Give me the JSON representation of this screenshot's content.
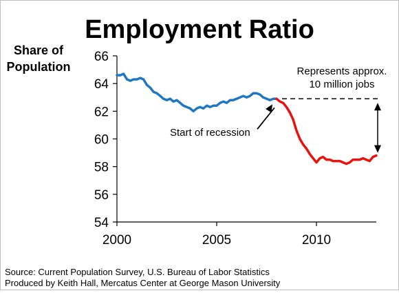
{
  "chart_data": {
    "type": "line",
    "title": "Employment Ratio",
    "ylabel_line1": "Share of",
    "ylabel_line2": "Population",
    "xlabel": "",
    "xlim": [
      2000,
      2013
    ],
    "ylim": [
      54,
      66
    ],
    "x_ticks": [
      2000,
      2005,
      2010
    ],
    "y_ticks": [
      54,
      56,
      58,
      60,
      62,
      64,
      66
    ],
    "grid": false,
    "series": [
      {
        "color": "#1f77c4",
        "points": [
          [
            2000.0,
            64.6
          ],
          [
            2000.17,
            64.6
          ],
          [
            2000.33,
            64.7
          ],
          [
            2000.5,
            64.3
          ],
          [
            2000.67,
            64.2
          ],
          [
            2000.83,
            64.3
          ],
          [
            2001.0,
            64.3
          ],
          [
            2001.17,
            64.4
          ],
          [
            2001.33,
            64.3
          ],
          [
            2001.5,
            63.9
          ],
          [
            2001.67,
            63.7
          ],
          [
            2001.83,
            63.4
          ],
          [
            2002.0,
            63.3
          ],
          [
            2002.17,
            63.1
          ],
          [
            2002.33,
            62.9
          ],
          [
            2002.5,
            62.8
          ],
          [
            2002.67,
            62.9
          ],
          [
            2002.83,
            62.7
          ],
          [
            2003.0,
            62.8
          ],
          [
            2003.17,
            62.6
          ],
          [
            2003.33,
            62.4
          ],
          [
            2003.5,
            62.3
          ],
          [
            2003.67,
            62.2
          ],
          [
            2003.83,
            62.0
          ],
          [
            2004.0,
            62.2
          ],
          [
            2004.17,
            62.3
          ],
          [
            2004.33,
            62.2
          ],
          [
            2004.5,
            62.4
          ],
          [
            2004.67,
            62.3
          ],
          [
            2004.83,
            62.4
          ],
          [
            2005.0,
            62.4
          ],
          [
            2005.17,
            62.6
          ],
          [
            2005.33,
            62.7
          ],
          [
            2005.5,
            62.6
          ],
          [
            2005.67,
            62.8
          ],
          [
            2005.83,
            62.8
          ],
          [
            2006.0,
            62.9
          ],
          [
            2006.17,
            63.0
          ],
          [
            2006.33,
            63.1
          ],
          [
            2006.5,
            63.0
          ],
          [
            2006.67,
            63.1
          ],
          [
            2006.83,
            63.3
          ],
          [
            2007.0,
            63.3
          ],
          [
            2007.17,
            63.2
          ],
          [
            2007.33,
            63.0
          ],
          [
            2007.5,
            62.9
          ],
          [
            2007.67,
            62.8
          ],
          [
            2007.83,
            62.9
          ],
          [
            2008.0,
            62.9
          ]
        ]
      },
      {
        "color": "#e8120f",
        "points": [
          [
            2008.0,
            62.9
          ],
          [
            2008.17,
            62.7
          ],
          [
            2008.33,
            62.6
          ],
          [
            2008.5,
            62.3
          ],
          [
            2008.67,
            61.9
          ],
          [
            2008.83,
            61.4
          ],
          [
            2009.0,
            60.6
          ],
          [
            2009.17,
            60.0
          ],
          [
            2009.33,
            59.6
          ],
          [
            2009.5,
            59.3
          ],
          [
            2009.67,
            58.9
          ],
          [
            2009.83,
            58.6
          ],
          [
            2010.0,
            58.3
          ],
          [
            2010.17,
            58.6
          ],
          [
            2010.33,
            58.7
          ],
          [
            2010.5,
            58.5
          ],
          [
            2010.67,
            58.5
          ],
          [
            2010.83,
            58.4
          ],
          [
            2011.0,
            58.4
          ],
          [
            2011.17,
            58.4
          ],
          [
            2011.33,
            58.3
          ],
          [
            2011.5,
            58.2
          ],
          [
            2011.67,
            58.3
          ],
          [
            2011.83,
            58.5
          ],
          [
            2012.0,
            58.5
          ],
          [
            2012.17,
            58.5
          ],
          [
            2012.33,
            58.6
          ],
          [
            2012.5,
            58.5
          ],
          [
            2012.67,
            58.4
          ],
          [
            2012.83,
            58.7
          ],
          [
            2013.0,
            58.8
          ]
        ]
      }
    ],
    "annotations": {
      "recession_label": "Start of recession",
      "recession_x": 2008.0,
      "recession_y": 62.9,
      "gap_label_line1": "Represents approx.",
      "gap_label_line2": "10 million jobs",
      "gap_top_y": 62.9,
      "gap_bottom_y": 58.8,
      "gap_x": 2013.0
    },
    "source_line1": "Source: Current Population Survey, U.S. Bureau of Labor Statistics",
    "source_line2": "Produced by Keith Hall, Mercatus Center at George Mason University",
    "colors": {
      "pre_recession": "#1f77c4",
      "post_recession": "#e8120f",
      "axis": "#000000"
    }
  }
}
